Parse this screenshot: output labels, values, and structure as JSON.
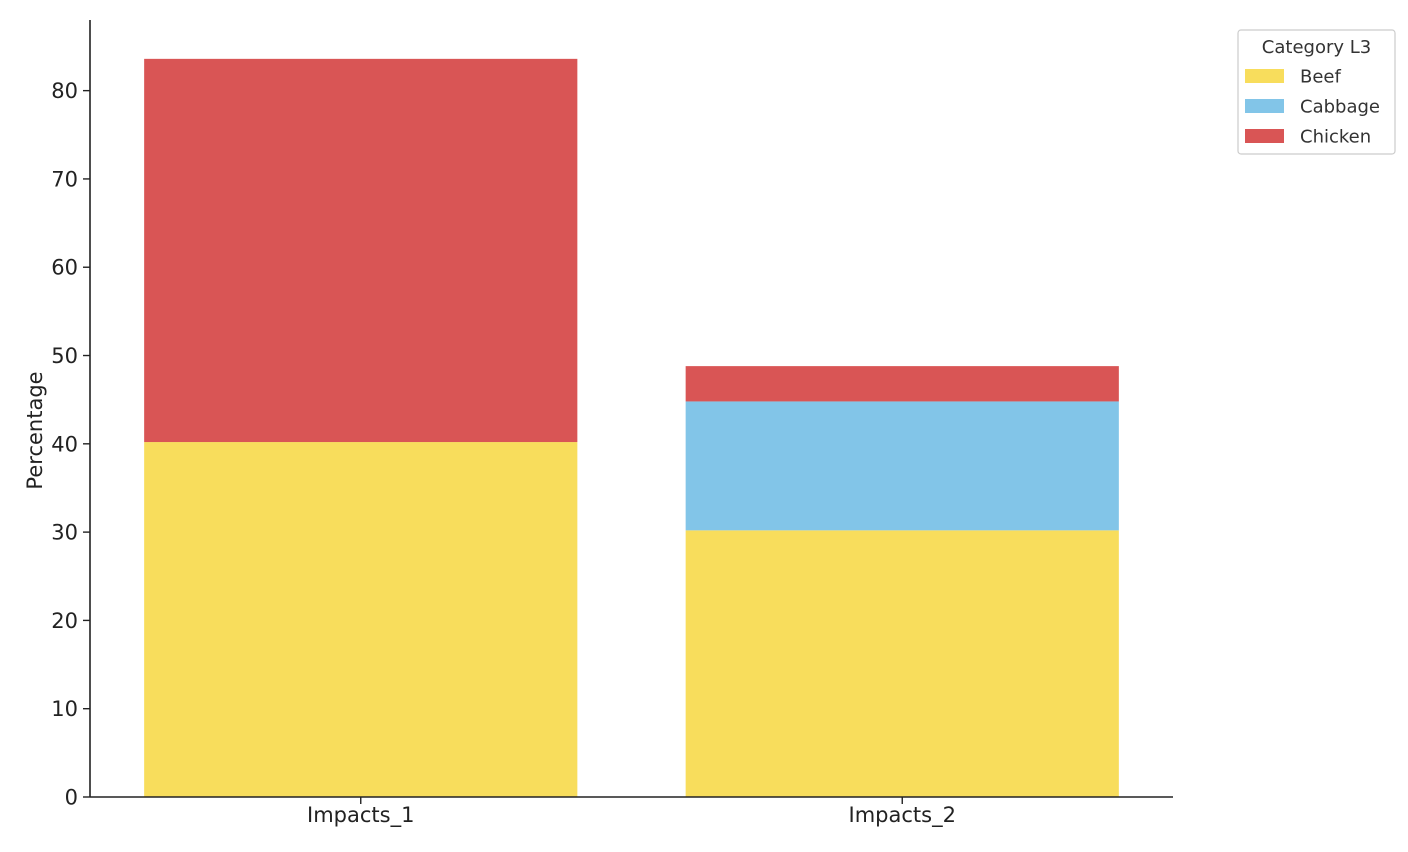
{
  "chart_data": {
    "type": "bar",
    "stacked": true,
    "categories": [
      "Impacts_1",
      "Impacts_2"
    ],
    "series": [
      {
        "name": "Beef",
        "values": [
          40.2,
          30.2
        ],
        "color": "#f8dd5c"
      },
      {
        "name": "Cabbage",
        "values": [
          0,
          14.6
        ],
        "color": "#82c5e8"
      },
      {
        "name": "Chicken",
        "values": [
          43.4,
          4.0
        ],
        "color": "#d95555"
      }
    ],
    "title": "",
    "xlabel": "",
    "ylabel": "Percentage",
    "ylim": [
      0,
      88
    ],
    "yticks": [
      0,
      10,
      20,
      30,
      40,
      50,
      60,
      70,
      80
    ],
    "grid": false,
    "legend": {
      "title": "Category L3",
      "placement": "outside-top-right"
    }
  }
}
